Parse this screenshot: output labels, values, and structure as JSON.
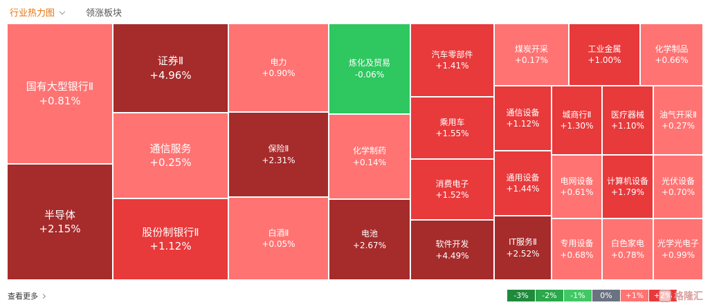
{
  "header": {
    "active_tab": "行业热力图",
    "other_tab": "领涨板块"
  },
  "treemap": {
    "cells": [
      {
        "name": "国有大型银行Ⅱ",
        "change": "+0.81%"
      },
      {
        "name": "半导体",
        "change": "+2.15%"
      },
      {
        "name": "证券Ⅱ",
        "change": "+4.96%"
      },
      {
        "name": "通信服务",
        "change": "+0.25%"
      },
      {
        "name": "股份制银行Ⅱ",
        "change": "+1.12%"
      },
      {
        "name": "电力",
        "change": "+0.90%"
      },
      {
        "name": "保险Ⅱ",
        "change": "+2.31%"
      },
      {
        "name": "白酒Ⅱ",
        "change": "+0.05%"
      },
      {
        "name": "炼化及贸易",
        "change": "-0.06%"
      },
      {
        "name": "化学制药",
        "change": "+0.14%"
      },
      {
        "name": "电池",
        "change": "+2.67%"
      },
      {
        "name": "汽车零部件",
        "change": "+1.41%"
      },
      {
        "name": "乘用车",
        "change": "+1.55%"
      },
      {
        "name": "消费电子",
        "change": "+1.52%"
      },
      {
        "name": "软件开发",
        "change": "+4.49%"
      },
      {
        "name": "煤炭开采",
        "change": "+0.17%"
      },
      {
        "name": "工业金属",
        "change": "+1.00%"
      },
      {
        "name": "化学制品",
        "change": "+0.66%"
      },
      {
        "name": "通信设备",
        "change": "+1.12%"
      },
      {
        "name": "城商行Ⅱ",
        "change": "+1.30%"
      },
      {
        "name": "医疗器械",
        "change": "+1.10%"
      },
      {
        "name": "油气开采Ⅱ",
        "change": "+0.27%"
      },
      {
        "name": "通用设备",
        "change": "+1.44%"
      },
      {
        "name": "电网设备",
        "change": "+0.61%"
      },
      {
        "name": "计算机设备",
        "change": "+1.79%"
      },
      {
        "name": "光伏设备",
        "change": "+0.70%"
      },
      {
        "name": "IT服务Ⅱ",
        "change": "+2.52%"
      },
      {
        "name": "专用设备",
        "change": "+0.68%"
      },
      {
        "name": "白色家电",
        "change": "+0.78%"
      },
      {
        "name": "光学光电子",
        "change": "+0.99%"
      }
    ]
  },
  "footer": {
    "more_label": "查看更多"
  },
  "legend": {
    "items": [
      {
        "label": "-3%",
        "color": "#1f8a3c"
      },
      {
        "label": "-2%",
        "color": "#2aa84b"
      },
      {
        "label": "-1%",
        "color": "#41c864"
      },
      {
        "label": "0%",
        "color": "#6b7380"
      },
      {
        "label": "+1%",
        "color": "#ff7373"
      },
      {
        "label": "+2%",
        "color": "#e8393b"
      }
    ]
  },
  "watermark": {
    "text": "格隆汇"
  },
  "colors": {
    "dark_red": "#a62b2b",
    "red": "#e8393b",
    "pink": "#ff7373",
    "green": "#2fc760",
    "accent_orange": "#e8710a"
  }
}
